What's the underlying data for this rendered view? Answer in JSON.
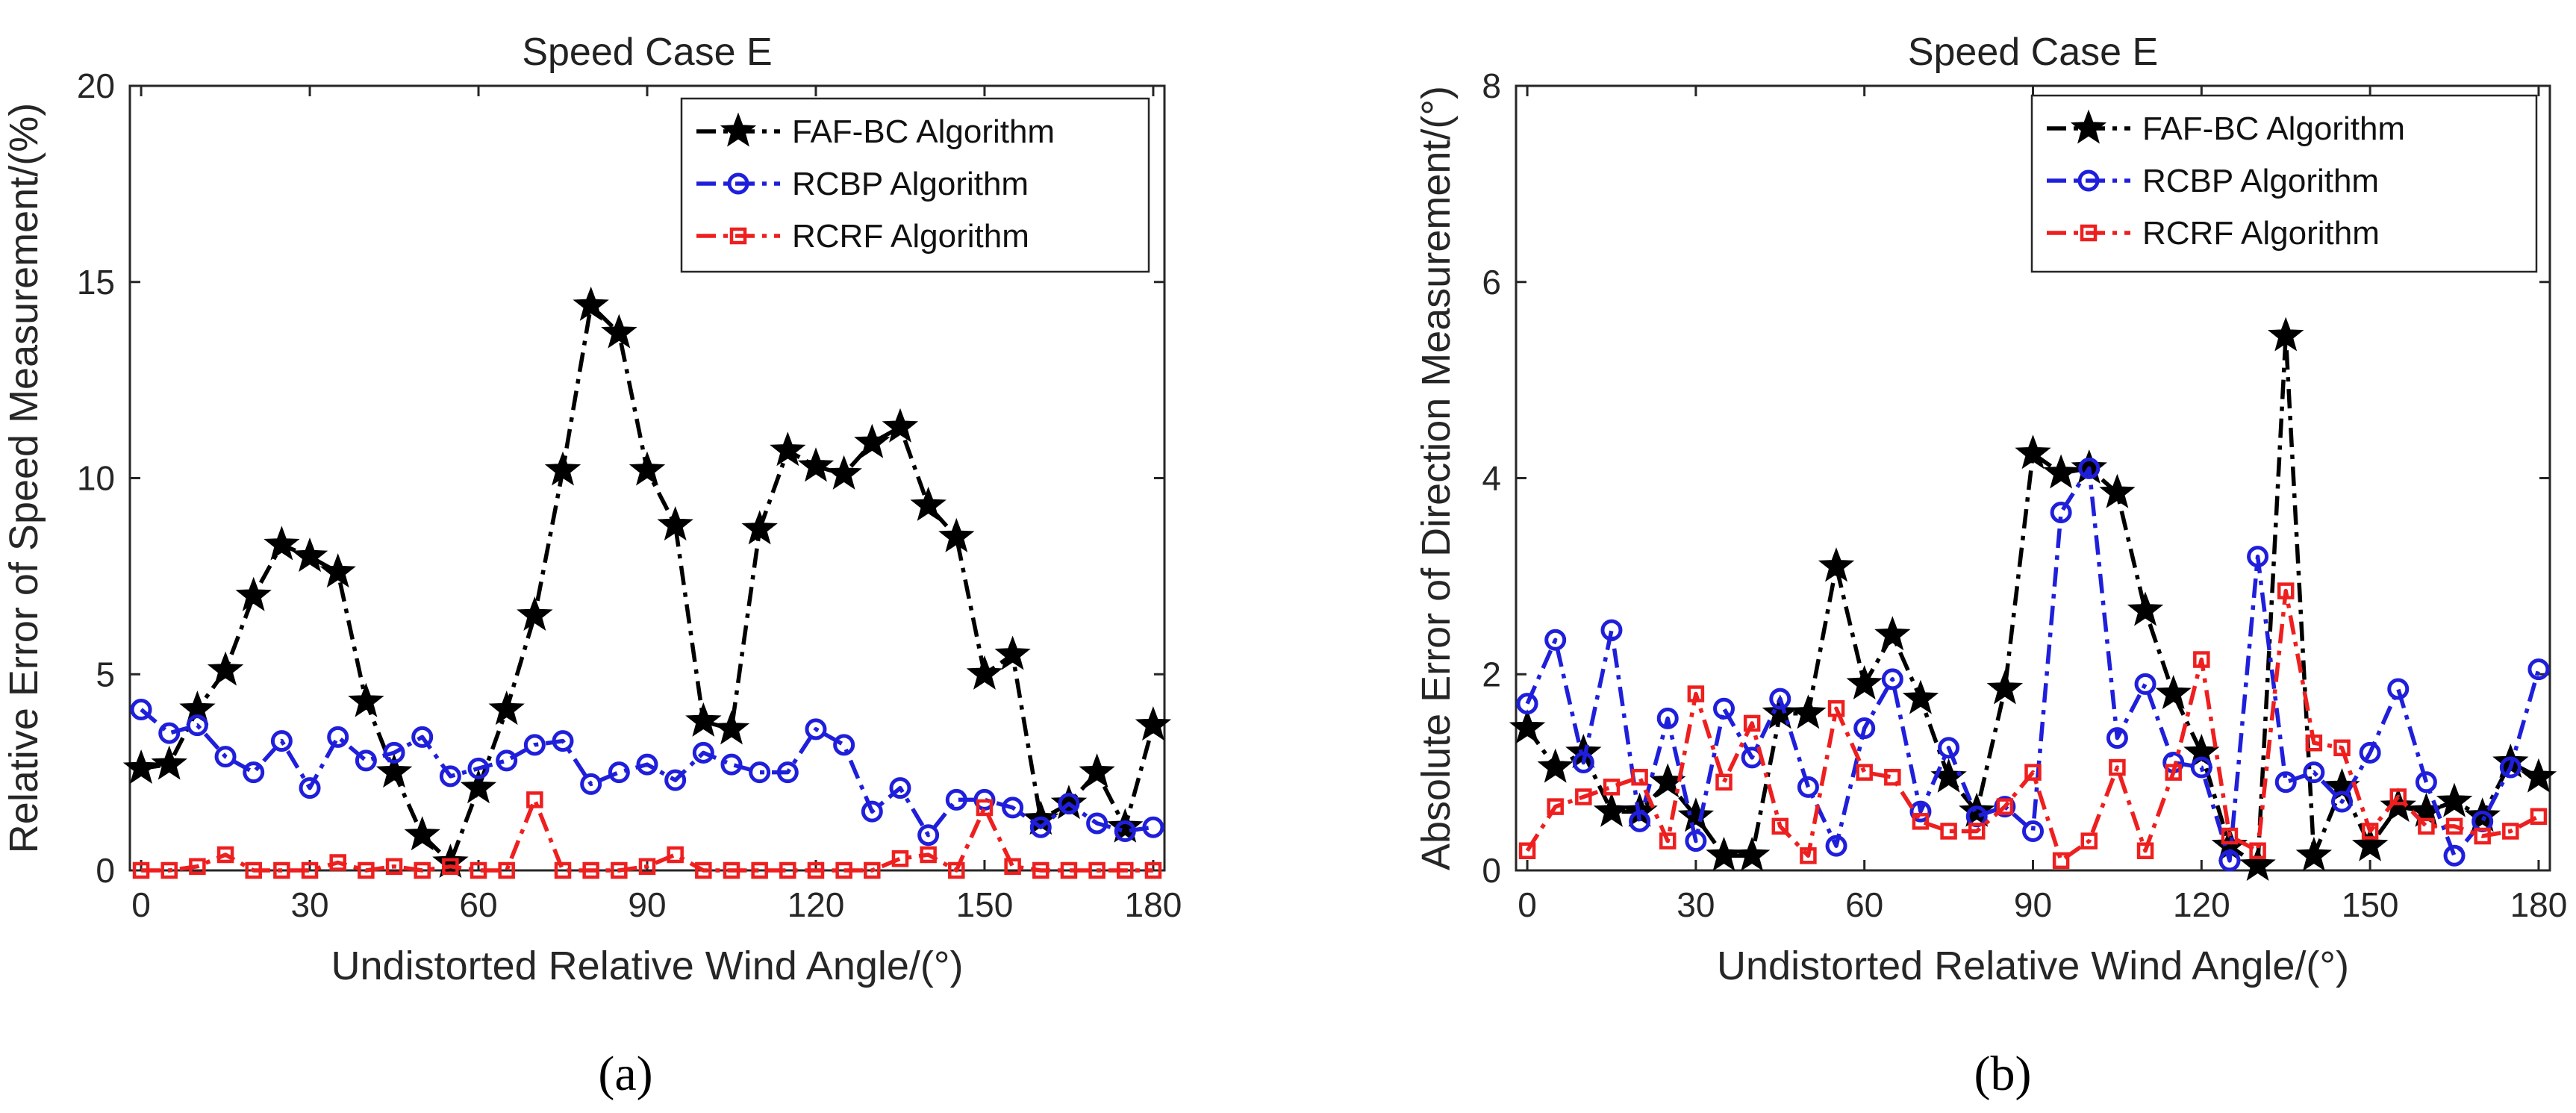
{
  "chart_data": [
    {
      "id": "a",
      "type": "line",
      "caption": "(a)",
      "title": "Speed Case E",
      "xlabel": "Undistorted Relative Wind Angle/(°)",
      "ylabel": "Relative Error of Speed Measurement/(%)",
      "xlim": [
        -2,
        182
      ],
      "ylim": [
        0,
        20
      ],
      "xticks": [
        0,
        30,
        60,
        90,
        120,
        150,
        180
      ],
      "yticks": [
        0,
        5,
        10,
        15,
        20
      ],
      "legend_position": "top-right",
      "grid": false,
      "x": [
        0,
        5,
        10,
        15,
        20,
        25,
        30,
        35,
        40,
        45,
        50,
        55,
        60,
        65,
        70,
        75,
        80,
        85,
        90,
        95,
        100,
        105,
        110,
        115,
        120,
        125,
        130,
        135,
        140,
        145,
        150,
        155,
        160,
        165,
        170,
        175,
        180
      ],
      "series": [
        {
          "name": "FAF-BC Algorithm",
          "color": "#000000",
          "marker": "star",
          "values": [
            2.6,
            2.7,
            4.1,
            5.1,
            7.0,
            8.3,
            8.0,
            7.6,
            4.3,
            2.5,
            0.9,
            0.2,
            2.1,
            4.1,
            6.5,
            10.2,
            14.4,
            13.7,
            10.2,
            8.8,
            3.8,
            3.6,
            8.7,
            10.7,
            10.3,
            10.1,
            10.9,
            11.3,
            9.3,
            8.5,
            5.0,
            5.5,
            1.3,
            1.7,
            2.5,
            1.1,
            3.7
          ]
        },
        {
          "name": "RCBP Algorithm",
          "color": "#1f1fdb",
          "marker": "circle",
          "values": [
            4.1,
            3.5,
            3.7,
            2.9,
            2.5,
            3.3,
            2.1,
            3.4,
            2.8,
            3.0,
            3.4,
            2.4,
            2.6,
            2.8,
            3.2,
            3.3,
            2.2,
            2.5,
            2.7,
            2.3,
            3.0,
            2.7,
            2.5,
            2.5,
            3.6,
            3.2,
            1.5,
            2.1,
            0.9,
            1.8,
            1.8,
            1.6,
            1.1,
            1.7,
            1.2,
            1.0,
            1.1
          ]
        },
        {
          "name": "RCRF Algorithm",
          "color": "#ee1f1f",
          "marker": "square",
          "values": [
            0,
            0,
            0.1,
            0.4,
            0,
            0,
            0,
            0.2,
            0,
            0.1,
            0,
            0.1,
            0,
            0,
            1.8,
            0,
            0,
            0,
            0.1,
            0.4,
            0,
            0,
            0,
            0,
            0,
            0,
            0,
            0.3,
            0.4,
            0,
            1.6,
            0.1,
            0,
            0,
            0,
            0,
            0
          ]
        }
      ]
    },
    {
      "id": "b",
      "type": "line",
      "caption": "(b)",
      "title": "Speed Case E",
      "xlabel": "Undistorted Relative Wind Angle/(°)",
      "ylabel": "Absolute Error of Direction Measurement/(°)",
      "xlim": [
        -2,
        182
      ],
      "ylim": [
        0,
        8
      ],
      "xticks": [
        0,
        30,
        60,
        90,
        120,
        150,
        180
      ],
      "yticks": [
        0,
        2,
        4,
        6,
        8
      ],
      "legend_position": "top-right",
      "grid": false,
      "x": [
        0,
        5,
        10,
        15,
        20,
        25,
        30,
        35,
        40,
        45,
        50,
        55,
        60,
        65,
        70,
        75,
        80,
        85,
        90,
        95,
        100,
        105,
        110,
        115,
        120,
        125,
        130,
        135,
        140,
        145,
        150,
        155,
        160,
        165,
        170,
        175,
        180
      ],
      "series": [
        {
          "name": "FAF-BC Algorithm",
          "color": "#000000",
          "marker": "star",
          "values": [
            1.45,
            1.05,
            1.2,
            0.6,
            0.6,
            0.9,
            0.55,
            0.15,
            0.15,
            1.6,
            1.6,
            3.1,
            1.9,
            2.4,
            1.75,
            0.95,
            0.6,
            1.85,
            4.25,
            4.05,
            4.1,
            3.85,
            2.65,
            1.8,
            1.2,
            0.25,
            0.05,
            5.45,
            0.15,
            0.85,
            0.25,
            0.65,
            0.6,
            0.7,
            0.55,
            1.1,
            0.95
          ]
        },
        {
          "name": "RCBP Algorithm",
          "color": "#1f1fdb",
          "marker": "circle",
          "values": [
            1.7,
            2.35,
            1.1,
            2.45,
            0.5,
            1.55,
            0.3,
            1.65,
            1.15,
            1.75,
            0.85,
            0.25,
            1.45,
            1.95,
            0.6,
            1.25,
            0.55,
            0.65,
            0.4,
            3.65,
            4.1,
            1.35,
            1.9,
            1.1,
            1.05,
            0.1,
            3.2,
            0.9,
            1.0,
            0.7,
            1.2,
            1.85,
            0.9,
            0.15,
            0.5,
            1.05,
            2.05
          ]
        },
        {
          "name": "RCRF Algorithm",
          "color": "#ee1f1f",
          "marker": "square",
          "values": [
            0.2,
            0.65,
            0.75,
            0.85,
            0.95,
            0.3,
            1.8,
            0.9,
            1.5,
            0.45,
            0.15,
            1.65,
            1.0,
            0.95,
            0.5,
            0.4,
            0.4,
            0.65,
            1.0,
            0.1,
            0.3,
            1.05,
            0.2,
            1.0,
            2.15,
            0.35,
            0.2,
            2.85,
            1.3,
            1.25,
            0.4,
            0.75,
            0.45,
            0.45,
            0.35,
            0.4,
            0.55
          ]
        }
      ]
    }
  ]
}
